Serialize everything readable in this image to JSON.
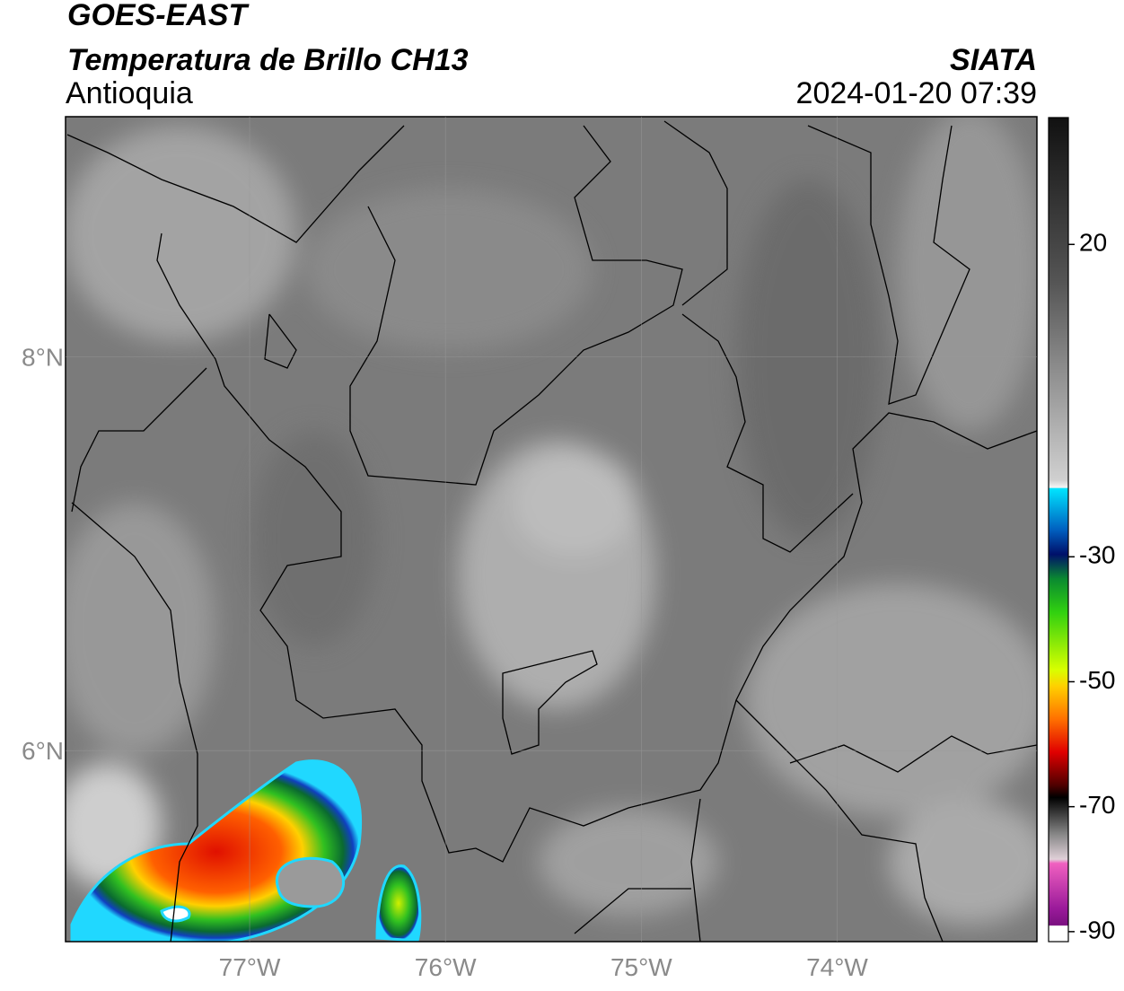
{
  "header": {
    "title": "GOES-EAST",
    "subtitle": "Temperatura de Brillo CH13",
    "region": "Antioquia",
    "source": "SIATA",
    "datetime": "2024-01-20 07:39"
  },
  "map": {
    "xlim": [
      -77.94,
      -72.98
    ],
    "ylim": [
      5.03,
      9.22
    ],
    "xticks": [
      {
        "value": -77,
        "label": "77°W"
      },
      {
        "value": -76,
        "label": "76°W"
      },
      {
        "value": -75,
        "label": "75°W"
      },
      {
        "value": -74,
        "label": "74°W"
      }
    ],
    "yticks": [
      {
        "value": 6,
        "label": "6°N"
      },
      {
        "value": 8,
        "label": "8°N"
      }
    ],
    "grid": true
  },
  "colorbar": {
    "lim": [
      -91.6,
      40.3
    ],
    "ticks": [
      20,
      -30,
      -50,
      -70,
      -90
    ]
  }
}
